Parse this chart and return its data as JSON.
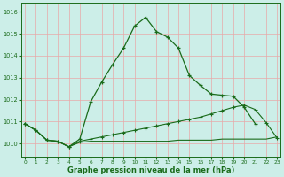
{
  "line_main_x": [
    0,
    1,
    2,
    3,
    4,
    5,
    6,
    7,
    8,
    9,
    10,
    11,
    12,
    13,
    14,
    15,
    16,
    17,
    18,
    19,
    20,
    21,
    22,
    23
  ],
  "line_main_y": [
    1010.9,
    1010.6,
    1010.15,
    1010.1,
    1009.85,
    1010.2,
    1011.9,
    1012.8,
    1013.6,
    1014.35,
    1015.35,
    1015.75,
    1015.1,
    1014.85,
    1014.35,
    1013.1,
    1012.65,
    1012.25,
    1012.2,
    1012.15,
    1011.65,
    1010.9,
    null,
    null
  ],
  "line_slow_x": [
    0,
    1,
    2,
    3,
    4,
    5,
    6,
    7,
    8,
    9,
    10,
    11,
    12,
    13,
    14,
    15,
    16,
    17,
    18,
    19,
    20,
    21,
    22,
    23
  ],
  "line_slow_y": [
    1010.9,
    1010.6,
    1010.15,
    1010.1,
    1009.85,
    1010.1,
    1010.2,
    1010.3,
    1010.4,
    1010.5,
    1010.6,
    1010.7,
    1010.8,
    1010.9,
    1011.0,
    1011.1,
    1011.2,
    1011.35,
    1011.5,
    1011.65,
    1011.75,
    1011.55,
    1010.95,
    1010.25
  ],
  "line_flat_x": [
    0,
    1,
    2,
    3,
    4,
    5,
    6,
    7,
    8,
    9,
    10,
    11,
    12,
    13,
    14,
    15,
    16,
    17,
    18,
    19,
    20,
    21,
    22,
    23
  ],
  "line_flat_y": [
    1010.9,
    1010.6,
    1010.15,
    1010.1,
    1009.85,
    1010.05,
    1010.1,
    1010.1,
    1010.1,
    1010.1,
    1010.1,
    1010.1,
    1010.1,
    1010.1,
    1010.15,
    1010.15,
    1010.15,
    1010.15,
    1010.2,
    1010.2,
    1010.2,
    1010.2,
    1010.2,
    1010.3
  ],
  "line_color": "#1a6b1a",
  "bg_color": "#cceee8",
  "grid_color": "#e8a8a8",
  "yticks": [
    1010,
    1011,
    1012,
    1013,
    1014,
    1015,
    1016
  ],
  "ylim": [
    1009.4,
    1016.4
  ],
  "xlim": [
    -0.3,
    23.3
  ],
  "xlabel": "Graphe pression niveau de la mer (hPa)"
}
